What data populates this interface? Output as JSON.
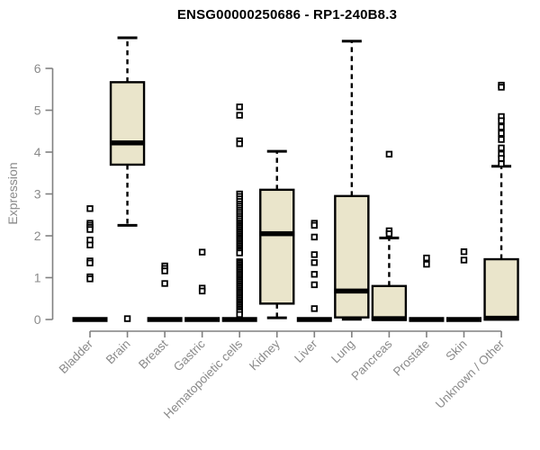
{
  "chart_data": {
    "type": "boxplot",
    "title": "ENSG00000250686 - RP1-240B8.3",
    "ylabel": "Expression",
    "ylim": [
      0,
      6.9
    ],
    "yticks": [
      0,
      1,
      2,
      3,
      4,
      5,
      6
    ],
    "grid": false,
    "legend": "none",
    "categories": [
      "Bladder",
      "Brain",
      "Breast",
      "Gastric",
      "Hematopoietic cells",
      "Kidney",
      "Liver",
      "Lung",
      "Pancreas",
      "Prostate",
      "Skin",
      "Unknown / Other"
    ],
    "boxes": [
      {
        "category": "Bladder",
        "q1": 0,
        "median": 0,
        "q3": 0,
        "whisker_low": 0,
        "whisker_high": 0,
        "outliers": [
          2.65,
          2.3,
          2.25,
          2.2,
          2.15,
          1.9,
          1.78,
          1.4,
          1.35,
          1.02,
          0.97
        ]
      },
      {
        "category": "Brain",
        "q1": 3.7,
        "median": 4.22,
        "q3": 5.67,
        "whisker_low": 2.25,
        "whisker_high": 6.73,
        "outliers": [
          0.02
        ]
      },
      {
        "category": "Breast",
        "q1": 0,
        "median": 0,
        "q3": 0,
        "whisker_low": 0,
        "whisker_high": 0,
        "outliers": [
          1.28,
          1.22,
          1.16,
          0.86
        ]
      },
      {
        "category": "Gastric",
        "q1": 0,
        "median": 0,
        "q3": 0,
        "whisker_low": 0,
        "whisker_high": 0,
        "outliers": [
          1.61,
          0.75,
          0.68
        ]
      },
      {
        "category": "Hematopoietic cells",
        "q1": 0,
        "median": 0,
        "q3": 0,
        "whisker_low": 0,
        "whisker_high": 0,
        "outliers": [
          5.08,
          4.88,
          4.27,
          4.2,
          3.0,
          2.94,
          2.88,
          2.82,
          2.76,
          2.71,
          2.66,
          2.61,
          2.56,
          2.51,
          2.46,
          2.41,
          2.36,
          2.31,
          2.27,
          2.23,
          2.19,
          2.15,
          2.11,
          2.07,
          2.03,
          1.99,
          1.95,
          1.91,
          1.87,
          1.83,
          1.79,
          1.75,
          1.71,
          1.67,
          1.63,
          1.59,
          1.38,
          1.34,
          1.3,
          1.26,
          1.22,
          1.18,
          1.14,
          1.1,
          1.06,
          1.02,
          0.98,
          0.94,
          0.9,
          0.86,
          0.82,
          0.78,
          0.74,
          0.7,
          0.66,
          0.62,
          0.58,
          0.54,
          0.5,
          0.46,
          0.42,
          0.38,
          0.34,
          0.3,
          0.26,
          0.22,
          0.18,
          0.12
        ]
      },
      {
        "category": "Kidney",
        "q1": 0.38,
        "median": 2.05,
        "q3": 3.1,
        "whisker_low": 0.04,
        "whisker_high": 4.02,
        "outliers": []
      },
      {
        "category": "Liver",
        "q1": 0,
        "median": 0,
        "q3": 0,
        "whisker_low": 0,
        "whisker_high": 0,
        "outliers": [
          2.3,
          2.25,
          1.97,
          1.55,
          1.36,
          1.08,
          0.83,
          0.26
        ]
      },
      {
        "category": "Lung",
        "q1": 0.05,
        "median": 0.68,
        "q3": 2.95,
        "whisker_low": 0.005,
        "whisker_high": 6.65,
        "outliers": []
      },
      {
        "category": "Pancreas",
        "q1": 0,
        "median": 0.02,
        "q3": 0.8,
        "whisker_low": 0,
        "whisker_high": 1.95,
        "outliers": [
          3.95,
          2.12,
          2.05
        ]
      },
      {
        "category": "Prostate",
        "q1": 0,
        "median": 0,
        "q3": 0,
        "whisker_low": 0,
        "whisker_high": 0,
        "outliers": [
          1.47,
          1.32
        ]
      },
      {
        "category": "Skin",
        "q1": 0,
        "median": 0,
        "q3": 0,
        "whisker_low": 0,
        "whisker_high": 0,
        "outliers": [
          1.62,
          1.42
        ]
      },
      {
        "category": "Unknown / Other",
        "q1": 0,
        "median": 0.03,
        "q3": 1.44,
        "whisker_low": 0,
        "whisker_high": 3.66,
        "outliers": [
          5.6,
          5.55,
          4.85,
          4.75,
          4.6,
          4.45,
          4.3,
          4.1,
          3.95,
          3.85,
          3.72
        ]
      }
    ],
    "colors": {
      "box_fill": "#eae5cb",
      "box_border": "#000000",
      "median": "#000000",
      "outlier_stroke": "#000000",
      "outlier_fill": "#ffffff",
      "axis": "#808080",
      "label": "#8a8a8a",
      "title": "#000000",
      "background": "#ffffff"
    }
  }
}
